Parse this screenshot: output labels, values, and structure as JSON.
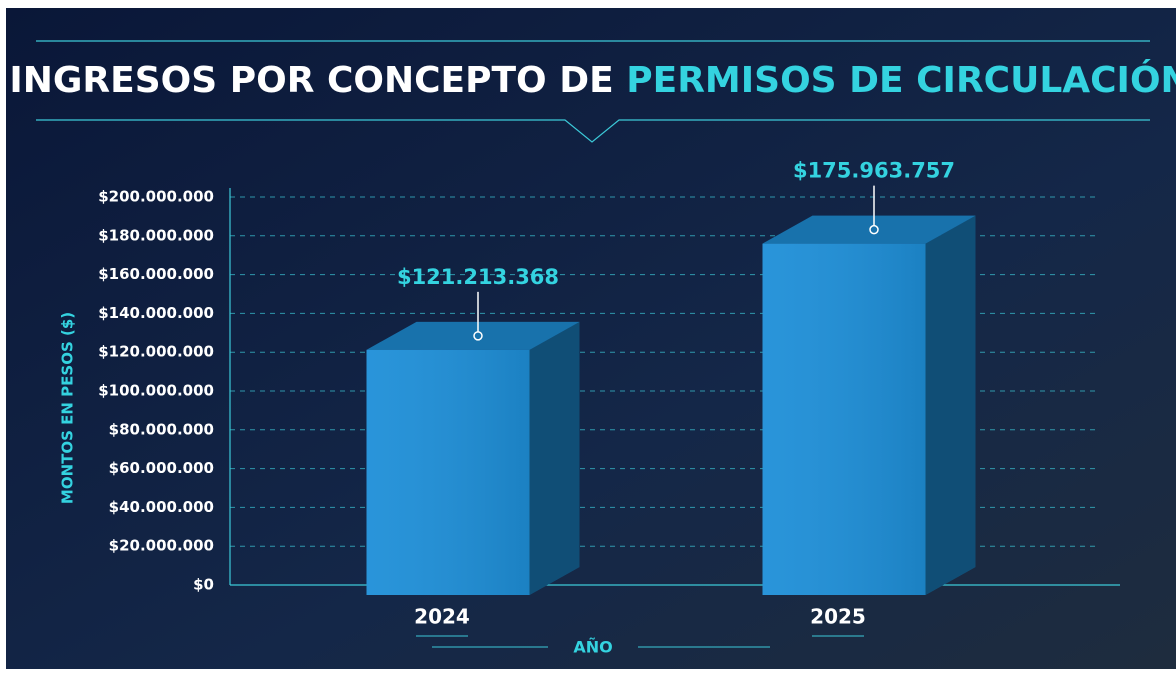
{
  "chart_data": {
    "type": "bar3d",
    "title": [
      "INGRESOS POR CONCEPTO DE",
      "PERMISOS DE CIRCULACIÓN"
    ],
    "y_label": "MONTOS EN PESOS ($)",
    "x_label": "AÑO",
    "categories": [
      "2024",
      "2025"
    ],
    "values": [
      121213368,
      175963757
    ],
    "value_labels": [
      "$121.213.368",
      "$175.963.757"
    ],
    "color": "#1e8fd8",
    "ylim": [
      0,
      200000000
    ],
    "yticks": [
      {
        "value": 0,
        "label": "$0"
      },
      {
        "value": 20000000,
        "label": "$20.000.000"
      },
      {
        "value": 40000000,
        "label": "$40.000.000"
      },
      {
        "value": 60000000,
        "label": "$60.000.000"
      },
      {
        "value": 80000000,
        "label": "$80.000.000"
      },
      {
        "value": 100000000,
        "label": "$100.000.000"
      },
      {
        "value": 120000000,
        "label": "$120.000.000"
      },
      {
        "value": 140000000,
        "label": "$140.000.000"
      },
      {
        "value": 160000000,
        "label": "$160.000.000"
      },
      {
        "value": 180000000,
        "label": "$180.000.000"
      },
      {
        "value": 200000000,
        "label": "$200.000.000"
      }
    ],
    "grid": true
  }
}
